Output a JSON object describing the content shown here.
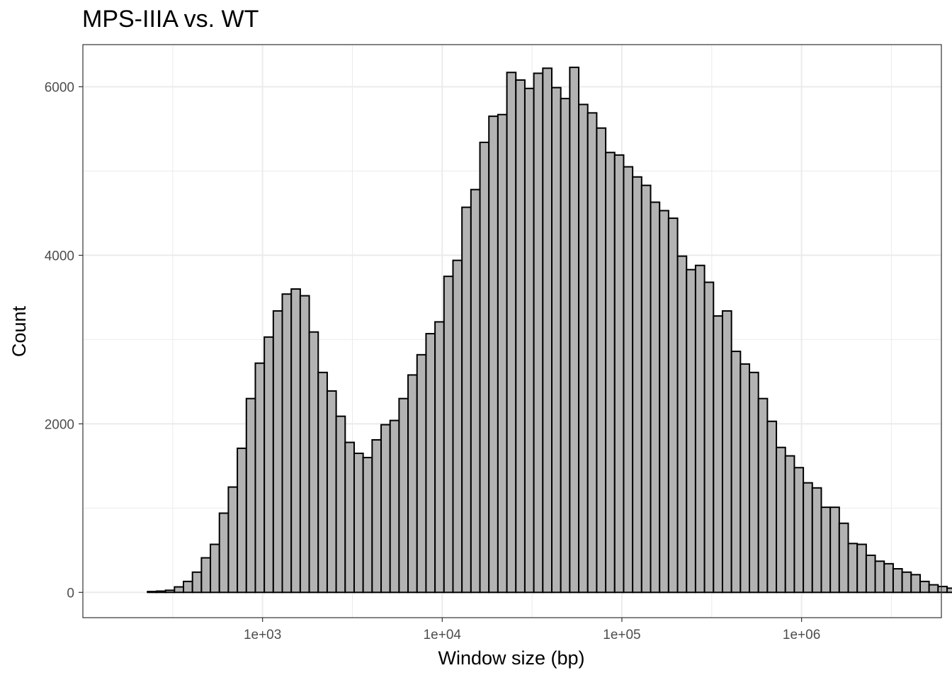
{
  "chart_data": {
    "type": "bar",
    "subtype": "histogram",
    "title": "MPS-IIIA vs. WT",
    "xlabel": "Window size (bp)",
    "ylabel": "Count",
    "x_scale": "log10",
    "x_ticks": [
      {
        "value": 1000,
        "label": "1e+03"
      },
      {
        "value": 10000,
        "label": "1e+04"
      },
      {
        "value": 100000,
        "label": "1e+05"
      },
      {
        "value": 1000000,
        "label": "1e+06"
      }
    ],
    "y_ticks": [
      {
        "value": 0,
        "label": "0"
      },
      {
        "value": 2000,
        "label": "2000"
      },
      {
        "value": 4000,
        "label": "4000"
      },
      {
        "value": 6000,
        "label": "6000"
      }
    ],
    "xlim": [
      100,
      6000000
    ],
    "ylim": [
      -300,
      6500
    ],
    "grid": true,
    "bar_fill": "#b3b3b3",
    "bar_stroke": "#000000",
    "bins": {
      "first_bin_left": 229,
      "bin_width_log10": 0.05,
      "values": [
        10,
        15,
        25,
        65,
        130,
        240,
        410,
        570,
        940,
        1250,
        1710,
        2300,
        2720,
        3030,
        3340,
        3540,
        3600,
        3520,
        3090,
        2610,
        2390,
        2090,
        1780,
        1650,
        1600,
        1810,
        1990,
        2040,
        2300,
        2580,
        2820,
        3070,
        3210,
        3750,
        3940,
        4570,
        4780,
        5340,
        5650,
        5670,
        6170,
        6080,
        5980,
        6160,
        6220,
        5990,
        5860,
        6230,
        5790,
        5690,
        5510,
        5220,
        5190,
        5050,
        4930,
        4830,
        4630,
        4530,
        4440,
        3990,
        3830,
        3880,
        3680,
        3280,
        3340,
        2860,
        2710,
        2610,
        2300,
        2030,
        1720,
        1620,
        1480,
        1300,
        1240,
        1010,
        1010,
        820,
        580,
        570,
        440,
        370,
        340,
        280,
        240,
        210,
        130,
        90,
        70,
        50,
        25,
        30,
        20,
        15,
        20,
        15,
        10,
        8,
        5,
        5,
        4,
        3,
        2,
        2
      ]
    }
  }
}
